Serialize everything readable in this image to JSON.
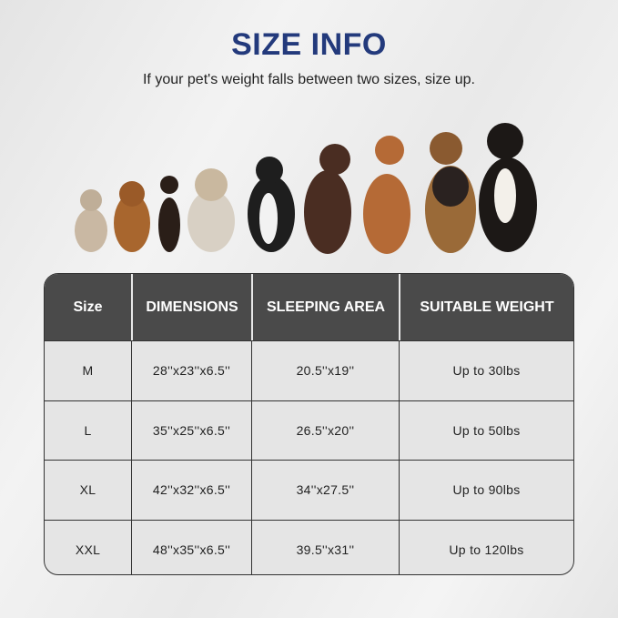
{
  "title": "SIZE INFO",
  "subtitle": "If your pet's weight falls between two sizes, size up.",
  "colors": {
    "title": "#233a7c",
    "header_bg": "#4a4a4a",
    "row_bg": "#e5e5e5"
  },
  "image": "dogs-lineup-photo",
  "table": {
    "headers": [
      "Size",
      "DIMENSIONS",
      "SLEEPING AREA",
      "SUITABLE WEIGHT"
    ],
    "rows": [
      [
        "M",
        "28''x23''x6.5''",
        "20.5''x19''",
        "Up to 30lbs"
      ],
      [
        "L",
        "35''x25''x6.5''",
        "26.5''x20''",
        "Up to 50lbs"
      ],
      [
        "XL",
        "42''x32''x6.5''",
        "34''x27.5''",
        "Up to 90lbs"
      ],
      [
        "XXL",
        "48''x35''x6.5''",
        "39.5''x31''",
        "Up to 120lbs"
      ]
    ]
  }
}
